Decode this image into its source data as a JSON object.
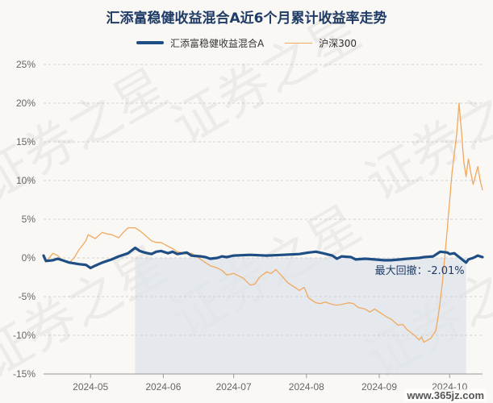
{
  "chart_data": {
    "type": "line",
    "title": "汇添富稳健收益混合A近6个月累计收益率走势",
    "ylim": [
      -15,
      25
    ],
    "yticks": [
      -15,
      -10,
      -5,
      0,
      5,
      10,
      15,
      20,
      25
    ],
    "ytick_labels": [
      "-15%",
      "-10%",
      "-5%",
      "0%",
      "5%",
      "10%",
      "15%",
      "20%",
      "25%"
    ],
    "xlim": [
      "2024-04-11",
      "2024-10-15"
    ],
    "xticks": [
      "2024-05-01",
      "2024-06-01",
      "2024-07-01",
      "2024-08-01",
      "2024-09-01",
      "2024-10-01"
    ],
    "xtick_labels": [
      "2024-05",
      "2024-06",
      "2024-07",
      "2024-08",
      "2024-09",
      "2024-10"
    ],
    "grid": true,
    "legend_position": "top-center",
    "colors": {
      "fund": "#1f4e84",
      "index": "#f1a95e",
      "drawdown_shade": "#dde4ea"
    },
    "drawdown": {
      "label": "最大回撤：-2.01%",
      "start": "2024-05-20",
      "end": "2024-10-08",
      "value": -2.01
    },
    "series": [
      {
        "name": "汇添富稳健收益混合A",
        "key": "fund",
        "points": [
          [
            "2024-04-11",
            0.3
          ],
          [
            "2024-04-12",
            -0.4
          ],
          [
            "2024-04-15",
            -0.3
          ],
          [
            "2024-04-17",
            -0.1
          ],
          [
            "2024-04-19",
            -0.3
          ],
          [
            "2024-04-22",
            -0.6
          ],
          [
            "2024-04-24",
            -0.7
          ],
          [
            "2024-04-26",
            -0.8
          ],
          [
            "2024-04-29",
            -0.9
          ],
          [
            "2024-05-01",
            -1.3
          ],
          [
            "2024-05-03",
            -1.0
          ],
          [
            "2024-05-06",
            -0.6
          ],
          [
            "2024-05-08",
            -0.4
          ],
          [
            "2024-05-10",
            -0.2
          ],
          [
            "2024-05-13",
            0.2
          ],
          [
            "2024-05-15",
            0.4
          ],
          [
            "2024-05-17",
            0.6
          ],
          [
            "2024-05-20",
            1.3
          ],
          [
            "2024-05-22",
            0.9
          ],
          [
            "2024-05-24",
            0.7
          ],
          [
            "2024-05-27",
            0.5
          ],
          [
            "2024-05-29",
            0.8
          ],
          [
            "2024-05-31",
            0.9
          ],
          [
            "2024-06-03",
            0.6
          ],
          [
            "2024-06-05",
            0.8
          ],
          [
            "2024-06-07",
            0.5
          ],
          [
            "2024-06-11",
            0.7
          ],
          [
            "2024-06-13",
            0.3
          ],
          [
            "2024-06-17",
            0.2
          ],
          [
            "2024-06-19",
            0.1
          ],
          [
            "2024-06-21",
            -0.1
          ],
          [
            "2024-06-24",
            0.0
          ],
          [
            "2024-06-26",
            0.2
          ],
          [
            "2024-06-28",
            0.1
          ],
          [
            "2024-07-01",
            0.3
          ],
          [
            "2024-07-08",
            0.4
          ],
          [
            "2024-07-15",
            0.3
          ],
          [
            "2024-07-22",
            0.4
          ],
          [
            "2024-07-29",
            0.5
          ],
          [
            "2024-08-02",
            0.7
          ],
          [
            "2024-08-05",
            0.8
          ],
          [
            "2024-08-08",
            0.6
          ],
          [
            "2024-08-12",
            0.3
          ],
          [
            "2024-08-14",
            -0.1
          ],
          [
            "2024-08-16",
            0.2
          ],
          [
            "2024-08-20",
            0.1
          ],
          [
            "2024-08-22",
            -0.2
          ],
          [
            "2024-08-26",
            -0.1
          ],
          [
            "2024-08-30",
            -0.2
          ],
          [
            "2024-09-03",
            -0.3
          ],
          [
            "2024-09-06",
            -0.3
          ],
          [
            "2024-09-10",
            -0.2
          ],
          [
            "2024-09-13",
            -0.1
          ],
          [
            "2024-09-18",
            0.0
          ],
          [
            "2024-09-20",
            0.1
          ],
          [
            "2024-09-24",
            0.2
          ],
          [
            "2024-09-26",
            0.6
          ],
          [
            "2024-09-27",
            0.8
          ],
          [
            "2024-09-30",
            0.7
          ],
          [
            "2024-10-01",
            0.5
          ],
          [
            "2024-10-03",
            0.6
          ],
          [
            "2024-10-08",
            -0.6
          ],
          [
            "2024-10-09",
            -0.2
          ],
          [
            "2024-10-11",
            0.0
          ],
          [
            "2024-10-13",
            0.3
          ],
          [
            "2024-10-15",
            0.1
          ]
        ]
      },
      {
        "name": "沪深300",
        "key": "index",
        "points": [
          [
            "2024-04-11",
            0.0
          ],
          [
            "2024-04-12",
            -0.5
          ],
          [
            "2024-04-15",
            0.6
          ],
          [
            "2024-04-17",
            0.3
          ],
          [
            "2024-04-19",
            -0.3
          ],
          [
            "2024-04-22",
            -0.6
          ],
          [
            "2024-04-24",
            0.0
          ],
          [
            "2024-04-26",
            1.0
          ],
          [
            "2024-04-29",
            2.2
          ],
          [
            "2024-04-30",
            3.0
          ],
          [
            "2024-05-03",
            2.5
          ],
          [
            "2024-05-06",
            3.3
          ],
          [
            "2024-05-08",
            3.1
          ],
          [
            "2024-05-10",
            3.0
          ],
          [
            "2024-05-13",
            2.6
          ],
          [
            "2024-05-15",
            3.3
          ],
          [
            "2024-05-17",
            3.9
          ],
          [
            "2024-05-20",
            3.9
          ],
          [
            "2024-05-22",
            3.5
          ],
          [
            "2024-05-24",
            3.0
          ],
          [
            "2024-05-27",
            2.2
          ],
          [
            "2024-05-29",
            2.0
          ],
          [
            "2024-05-31",
            2.0
          ],
          [
            "2024-06-03",
            1.5
          ],
          [
            "2024-06-05",
            1.2
          ],
          [
            "2024-06-07",
            0.8
          ],
          [
            "2024-06-11",
            0.5
          ],
          [
            "2024-06-13",
            0.6
          ],
          [
            "2024-06-17",
            -0.2
          ],
          [
            "2024-06-19",
            -0.6
          ],
          [
            "2024-06-21",
            -1.0
          ],
          [
            "2024-06-24",
            -1.3
          ],
          [
            "2024-06-26",
            -1.6
          ],
          [
            "2024-06-28",
            -2.2
          ],
          [
            "2024-07-01",
            -2.0
          ],
          [
            "2024-07-03",
            -2.3
          ],
          [
            "2024-07-05",
            -2.6
          ],
          [
            "2024-07-08",
            -3.5
          ],
          [
            "2024-07-10",
            -3.4
          ],
          [
            "2024-07-12",
            -2.5
          ],
          [
            "2024-07-15",
            -1.8
          ],
          [
            "2024-07-17",
            -2.0
          ],
          [
            "2024-07-19",
            -1.5
          ],
          [
            "2024-07-22",
            -2.5
          ],
          [
            "2024-07-24",
            -3.2
          ],
          [
            "2024-07-26",
            -3.6
          ],
          [
            "2024-07-29",
            -4.2
          ],
          [
            "2024-07-31",
            -3.8
          ],
          [
            "2024-08-02",
            -5.2
          ],
          [
            "2024-08-05",
            -5.8
          ],
          [
            "2024-08-07",
            -5.9
          ],
          [
            "2024-08-09",
            -5.7
          ],
          [
            "2024-08-12",
            -6.0
          ],
          [
            "2024-08-14",
            -6.1
          ],
          [
            "2024-08-16",
            -6.0
          ],
          [
            "2024-08-19",
            -5.8
          ],
          [
            "2024-08-21",
            -5.9
          ],
          [
            "2024-08-23",
            -6.4
          ],
          [
            "2024-08-26",
            -6.6
          ],
          [
            "2024-08-28",
            -7.0
          ],
          [
            "2024-08-30",
            -6.6
          ],
          [
            "2024-09-02",
            -7.2
          ],
          [
            "2024-09-04",
            -7.6
          ],
          [
            "2024-09-06",
            -7.9
          ],
          [
            "2024-09-09",
            -8.7
          ],
          [
            "2024-09-11",
            -8.6
          ],
          [
            "2024-09-13",
            -9.3
          ],
          [
            "2024-09-16",
            -10.0
          ],
          [
            "2024-09-18",
            -10.6
          ],
          [
            "2024-09-19",
            -10.2
          ],
          [
            "2024-09-20",
            -10.9
          ],
          [
            "2024-09-23",
            -10.4
          ],
          [
            "2024-09-24",
            -9.9
          ],
          [
            "2024-09-25",
            -9.5
          ],
          [
            "2024-09-26",
            -7.8
          ],
          [
            "2024-09-27",
            -5.6
          ],
          [
            "2024-09-28",
            -3.0
          ],
          [
            "2024-09-30",
            3.8
          ],
          [
            "2024-10-02",
            11.0
          ],
          [
            "2024-10-04",
            16.0
          ],
          [
            "2024-10-05",
            20.0
          ],
          [
            "2024-10-06",
            16.5
          ],
          [
            "2024-10-07",
            12.5
          ],
          [
            "2024-10-08",
            10.5
          ],
          [
            "2024-10-09",
            12.8
          ],
          [
            "2024-10-10",
            11.0
          ],
          [
            "2024-10-11",
            9.5
          ],
          [
            "2024-10-13",
            11.8
          ],
          [
            "2024-10-14",
            10.0
          ],
          [
            "2024-10-15",
            8.8
          ]
        ]
      }
    ]
  },
  "watermark": {
    "text": "证券之星",
    "site": "www.365jz.com"
  }
}
